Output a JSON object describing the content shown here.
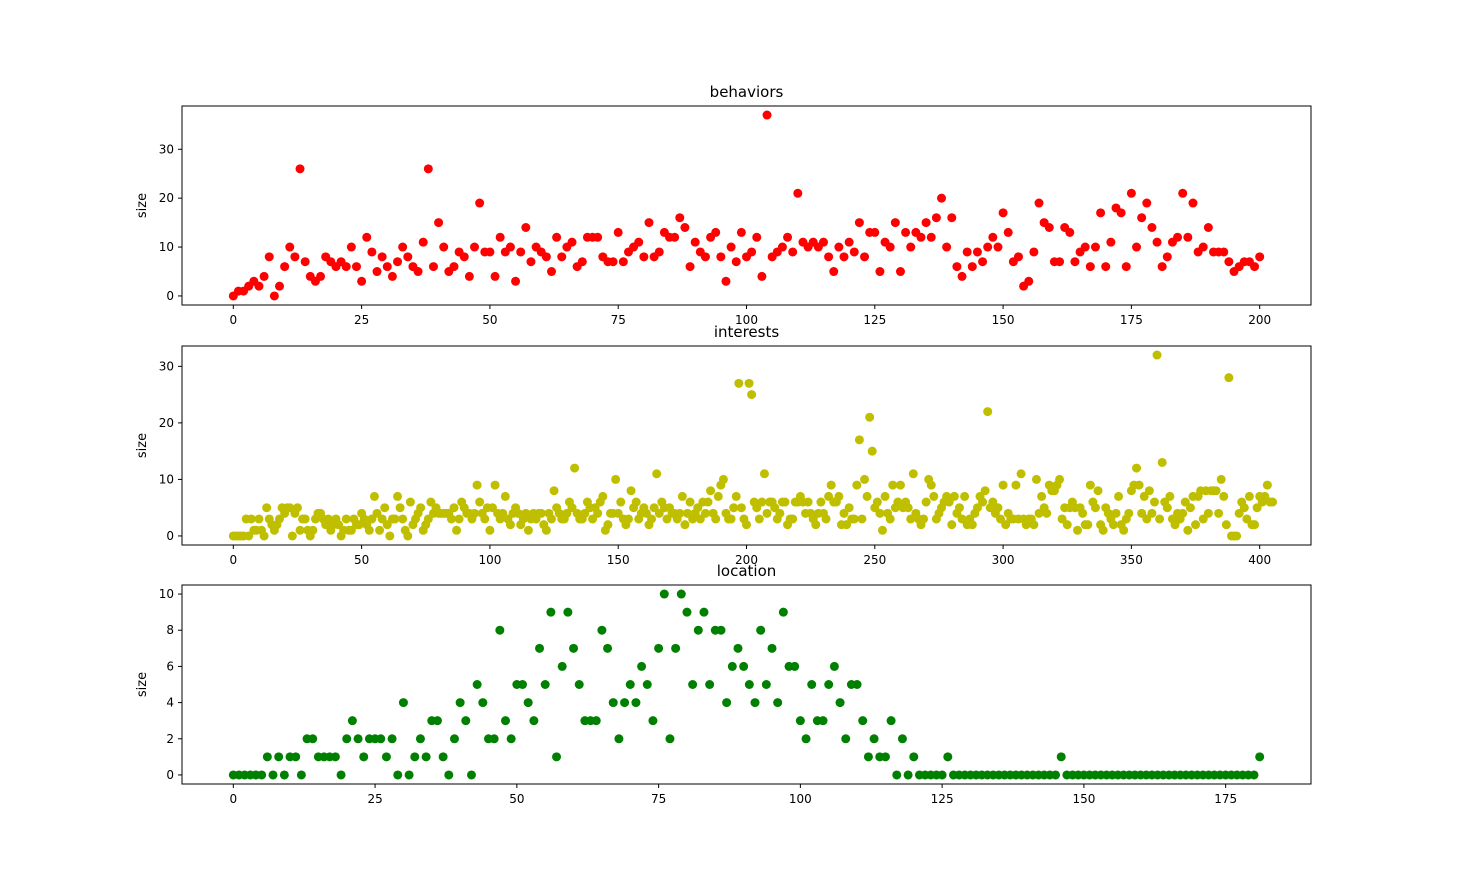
{
  "chart_data": [
    {
      "type": "scatter",
      "title": "behaviors",
      "xlabel": "",
      "ylabel": "size",
      "color": "#ff0000",
      "xlim": [
        -10,
        210
      ],
      "ylim": [
        -1.85,
        38.85
      ],
      "xticks": [
        0,
        25,
        50,
        75,
        100,
        125,
        150,
        175,
        200
      ],
      "yticks": [
        0,
        10,
        20,
        30
      ],
      "grid": false,
      "y": [
        0,
        1,
        1,
        2,
        3,
        2,
        4,
        8,
        0,
        2,
        6,
        10,
        8,
        26,
        7,
        4,
        3,
        4,
        8,
        7,
        6,
        7,
        6,
        10,
        6,
        3,
        12,
        9,
        5,
        8,
        6,
        4,
        7,
        10,
        8,
        6,
        5,
        11,
        26,
        6,
        15,
        10,
        5,
        6,
        9,
        8,
        4,
        10,
        19,
        9,
        9,
        4,
        12,
        9,
        10,
        3,
        9,
        14,
        7,
        10,
        9,
        8,
        5,
        12,
        8,
        10,
        11,
        6,
        7,
        12,
        12,
        12,
        8,
        7,
        7,
        13,
        7,
        9,
        10,
        11,
        8,
        15,
        8,
        9,
        13,
        12,
        12,
        16,
        14,
        6,
        11,
        9,
        8,
        12,
        13,
        8,
        3,
        10,
        7,
        13,
        8,
        9,
        12,
        4,
        37,
        8,
        9,
        10,
        12,
        9,
        21,
        11,
        10,
        11,
        10,
        11,
        8,
        5,
        10,
        8,
        11,
        9,
        15,
        8,
        13,
        13,
        5,
        11,
        10,
        15,
        5,
        13,
        10,
        13,
        12,
        15,
        12,
        16,
        20,
        10,
        16,
        6,
        4,
        9,
        6,
        9,
        7,
        10,
        12,
        10,
        17,
        13,
        7,
        8,
        2,
        3,
        9,
        19,
        15,
        14,
        7,
        7,
        14,
        13,
        7,
        9,
        10,
        6,
        10,
        17,
        6,
        11,
        18,
        17,
        6,
        21,
        10,
        16,
        19,
        14,
        11,
        6,
        8,
        11,
        12,
        21,
        12,
        19,
        9,
        10,
        14,
        9,
        9,
        9,
        7,
        5,
        6,
        7,
        7,
        6,
        8
      ]
    },
    {
      "type": "scatter",
      "title": "interests",
      "xlabel": "",
      "ylabel": "size",
      "color": "#bfbf00",
      "xlim": [
        -20,
        420
      ],
      "ylim": [
        -1.6,
        33.6
      ],
      "xticks": [
        0,
        50,
        100,
        150,
        200,
        250,
        300,
        350,
        400
      ],
      "yticks": [
        0,
        10,
        20,
        30
      ],
      "grid": false,
      "y": [
        0,
        0,
        0,
        0,
        0,
        3,
        0,
        3,
        1,
        1,
        3,
        1,
        0,
        5,
        3,
        2,
        1,
        2,
        3,
        5,
        4,
        5,
        5,
        0,
        4,
        5,
        1,
        3,
        3,
        1,
        0,
        1,
        3,
        4,
        4,
        3,
        2,
        3,
        1,
        2,
        3,
        2,
        0,
        1,
        3,
        1,
        1,
        3,
        2,
        2,
        4,
        3,
        2,
        1,
        3,
        7,
        4,
        1,
        3,
        5,
        2,
        0,
        3,
        3,
        7,
        5,
        3,
        1,
        0,
        6,
        2,
        3,
        4,
        5,
        1,
        2,
        3,
        6,
        4,
        5,
        4,
        4,
        4,
        4,
        4,
        3,
        5,
        1,
        3,
        6,
        5,
        4,
        4,
        3,
        4,
        9,
        6,
        4,
        3,
        5,
        1,
        5,
        9,
        4,
        3,
        4,
        7,
        3,
        2,
        4,
        5,
        4,
        2,
        3,
        4,
        1,
        3,
        4,
        3,
        4,
        4,
        2,
        1,
        4,
        3,
        8,
        5,
        4,
        3,
        3,
        4,
        6,
        5,
        12,
        4,
        3,
        3,
        4,
        6,
        5,
        3,
        5,
        4,
        6,
        7,
        1,
        2,
        4,
        4,
        10,
        4,
        6,
        3,
        2,
        3,
        8,
        5,
        6,
        3,
        4,
        5,
        4,
        2,
        3,
        5,
        11,
        4,
        6,
        5,
        3,
        5,
        4,
        4,
        3,
        4,
        7,
        2,
        4,
        6,
        3,
        4,
        5,
        3,
        6,
        4,
        6,
        8,
        4,
        3,
        7,
        9,
        10,
        4,
        3,
        3,
        5,
        7,
        27,
        5,
        3,
        2,
        27,
        25,
        6,
        5,
        3,
        6,
        11,
        4,
        6,
        6,
        5,
        3,
        4,
        6,
        6,
        2,
        3,
        3,
        6,
        6,
        7,
        6,
        4,
        6,
        4,
        3,
        2,
        4,
        6,
        4,
        3,
        7,
        9,
        6,
        6,
        7,
        2,
        4,
        2,
        5,
        3,
        3,
        9,
        17,
        3,
        10,
        7,
        21,
        15,
        5,
        6,
        4,
        1,
        7,
        4,
        3,
        9,
        5,
        6,
        9,
        5,
        6,
        5,
        3,
        11,
        4,
        3,
        2,
        3,
        6,
        10,
        9,
        7,
        3,
        4,
        5,
        6,
        7,
        6,
        2,
        7,
        4,
        5,
        3,
        7,
        2,
        3,
        2,
        4,
        5,
        7,
        6,
        8,
        22,
        5,
        6,
        4,
        5,
        3,
        9,
        2,
        4,
        3,
        3,
        9,
        3,
        11,
        3,
        2,
        3,
        3,
        2,
        10,
        4,
        7,
        5,
        4,
        9,
        8,
        8,
        9,
        10,
        3,
        5,
        2,
        5,
        6,
        5,
        1,
        5,
        4,
        2,
        2,
        9,
        6,
        5,
        8,
        2,
        1,
        5,
        4,
        3,
        2,
        4,
        7,
        2,
        1,
        3,
        4,
        8,
        9,
        12,
        9,
        4,
        7,
        3,
        8,
        4,
        6,
        32,
        3,
        13,
        6,
        5,
        7,
        3,
        2,
        4,
        3,
        4,
        6,
        1,
        5,
        7,
        2,
        7,
        8,
        3,
        8,
        4,
        8,
        8,
        8,
        4,
        10,
        7,
        2,
        28,
        0,
        0,
        0,
        4,
        6,
        5,
        3,
        7,
        2,
        2,
        5,
        7,
        6,
        7,
        9,
        6,
        6
      ]
    },
    {
      "type": "scatter",
      "title": "location",
      "xlabel": "",
      "ylabel": "size",
      "color": "#008000",
      "xlim": [
        -9.05,
        190.05
      ],
      "ylim": [
        -0.5,
        10.5
      ],
      "xticks": [
        0,
        25,
        50,
        75,
        100,
        125,
        150,
        175
      ],
      "yticks": [
        0,
        2,
        4,
        6,
        8,
        10
      ],
      "grid": false,
      "y": [
        0,
        0,
        0,
        0,
        0,
        0,
        1,
        0,
        1,
        0,
        1,
        1,
        0,
        2,
        2,
        1,
        1,
        1,
        1,
        0,
        2,
        3,
        2,
        1,
        2,
        2,
        2,
        1,
        2,
        0,
        4,
        0,
        1,
        2,
        1,
        3,
        3,
        1,
        0,
        2,
        4,
        3,
        0,
        5,
        4,
        2,
        2,
        8,
        3,
        2,
        5,
        5,
        4,
        3,
        7,
        5,
        9,
        1,
        6,
        9,
        7,
        5,
        3,
        3,
        3,
        8,
        7,
        4,
        2,
        4,
        5,
        4,
        6,
        5,
        3,
        7,
        10,
        2,
        7,
        10,
        9,
        5,
        8,
        9,
        5,
        8,
        8,
        4,
        6,
        7,
        6,
        5,
        4,
        8,
        5,
        7,
        4,
        9,
        6,
        6,
        3,
        2,
        5,
        3,
        3,
        5,
        6,
        4,
        2,
        5,
        5,
        3,
        1,
        2,
        1,
        1,
        3,
        0,
        2,
        0,
        1,
        0,
        0,
        0,
        0,
        0,
        1,
        0,
        0,
        0,
        0,
        0,
        0,
        0,
        0,
        0,
        0,
        0,
        0,
        0,
        0,
        0,
        0,
        0,
        0,
        0,
        1,
        0,
        0,
        0,
        0,
        0,
        0,
        0,
        0,
        0,
        0,
        0,
        0,
        0,
        0,
        0,
        0,
        0,
        0,
        0,
        0,
        0,
        0,
        0,
        0,
        0,
        0,
        0,
        0,
        0,
        0,
        0,
        0,
        0,
        0,
        1
      ]
    }
  ]
}
